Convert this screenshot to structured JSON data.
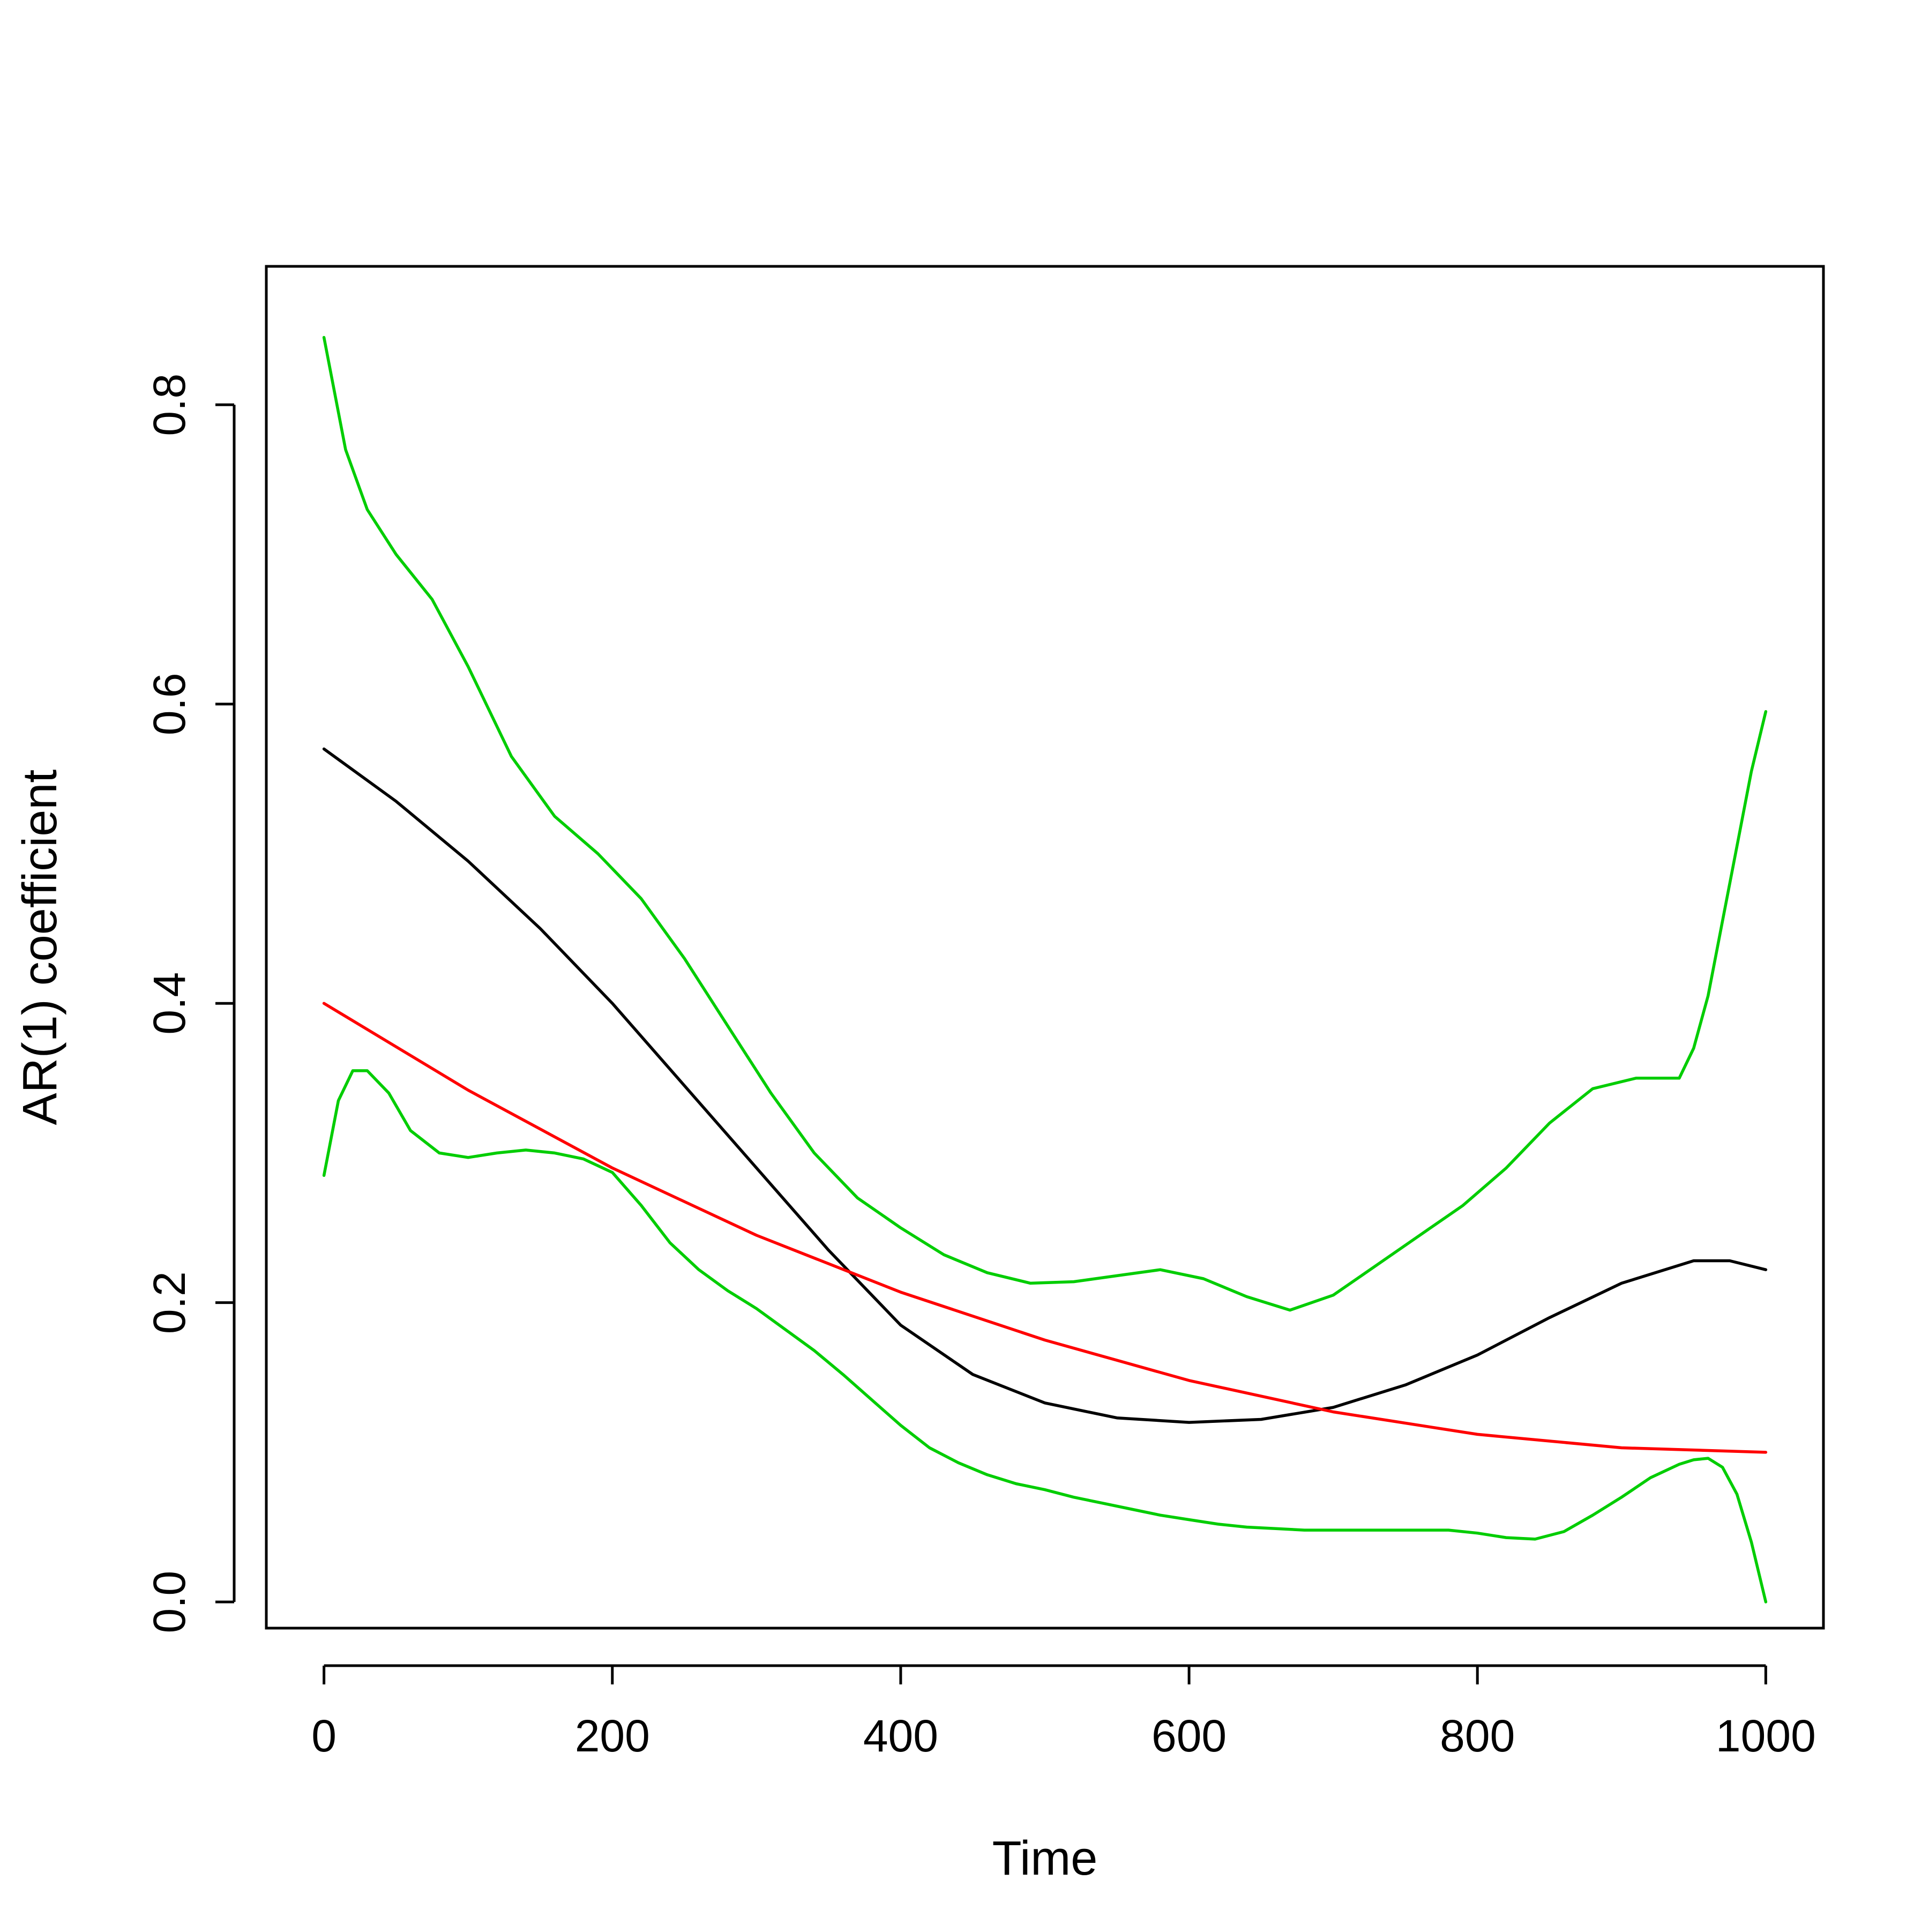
{
  "chart_data": {
    "type": "line",
    "title": "",
    "xlabel": "Time",
    "ylabel": "AR(1) coefficient",
    "xlim": [
      -40,
      1040
    ],
    "ylim": [
      -0.0175,
      0.8925
    ],
    "xticks": [
      0,
      200,
      400,
      600,
      800,
      1000
    ],
    "xtick_labels": [
      "0",
      "200",
      "400",
      "600",
      "800",
      "1000"
    ],
    "yticks": [
      0.0,
      0.2,
      0.4,
      0.6,
      0.8
    ],
    "ytick_labels": [
      "0.0",
      "0.2",
      "0.4",
      "0.6",
      "0.8"
    ],
    "grid": false,
    "legend": "none",
    "series": [
      {
        "color": "#00cd00",
        "x": [
          0,
          15,
          30,
          50,
          75,
          100,
          130,
          160,
          190,
          220,
          250,
          280,
          310,
          340,
          370,
          400,
          430,
          460,
          490,
          520,
          550,
          580,
          610,
          640,
          670,
          700,
          730,
          760,
          790,
          820,
          850,
          880,
          910,
          940,
          950,
          960,
          970,
          980,
          990,
          1000
        ],
        "y": [
          0.845,
          0.77,
          0.73,
          0.7,
          0.67,
          0.625,
          0.565,
          0.525,
          0.5,
          0.47,
          0.43,
          0.385,
          0.34,
          0.3,
          0.27,
          0.25,
          0.232,
          0.22,
          0.213,
          0.214,
          0.218,
          0.222,
          0.216,
          0.204,
          0.195,
          0.205,
          0.225,
          0.245,
          0.265,
          0.29,
          0.32,
          0.343,
          0.35,
          0.35,
          0.37,
          0.405,
          0.455,
          0.505,
          0.555,
          0.595
        ]
      },
      {
        "color": "#00cd00",
        "x": [
          0,
          10,
          20,
          30,
          45,
          60,
          80,
          100,
          120,
          140,
          160,
          180,
          200,
          220,
          240,
          260,
          280,
          300,
          320,
          340,
          360,
          380,
          400,
          420,
          440,
          460,
          480,
          500,
          520,
          540,
          560,
          580,
          600,
          620,
          640,
          660,
          680,
          700,
          720,
          740,
          760,
          780,
          800,
          820,
          840,
          860,
          880,
          900,
          920,
          940,
          950,
          960,
          970,
          980,
          990,
          1000
        ],
        "y": [
          0.285,
          0.335,
          0.355,
          0.355,
          0.34,
          0.315,
          0.3,
          0.297,
          0.3,
          0.302,
          0.3,
          0.296,
          0.287,
          0.265,
          0.24,
          0.222,
          0.208,
          0.196,
          0.182,
          0.168,
          0.152,
          0.135,
          0.118,
          0.103,
          0.093,
          0.085,
          0.079,
          0.075,
          0.07,
          0.066,
          0.062,
          0.058,
          0.055,
          0.052,
          0.05,
          0.049,
          0.048,
          0.048,
          0.048,
          0.048,
          0.048,
          0.048,
          0.046,
          0.043,
          0.042,
          0.047,
          0.058,
          0.07,
          0.083,
          0.092,
          0.095,
          0.096,
          0.09,
          0.072,
          0.04,
          0.0
        ]
      },
      {
        "color": "#000000",
        "x": [
          0,
          50,
          100,
          150,
          200,
          250,
          300,
          350,
          400,
          450,
          500,
          550,
          600,
          650,
          700,
          750,
          800,
          850,
          900,
          950,
          975,
          1000
        ],
        "y": [
          0.57,
          0.535,
          0.495,
          0.45,
          0.4,
          0.345,
          0.29,
          0.235,
          0.185,
          0.152,
          0.133,
          0.123,
          0.12,
          0.122,
          0.13,
          0.145,
          0.165,
          0.19,
          0.213,
          0.228,
          0.228,
          0.222
        ]
      },
      {
        "color": "#ff0000",
        "x": [
          0,
          100,
          200,
          300,
          400,
          500,
          600,
          700,
          800,
          900,
          1000
        ],
        "y": [
          0.4,
          0.342,
          0.29,
          0.245,
          0.207,
          0.175,
          0.148,
          0.127,
          0.112,
          0.103,
          0.1
        ]
      }
    ]
  }
}
